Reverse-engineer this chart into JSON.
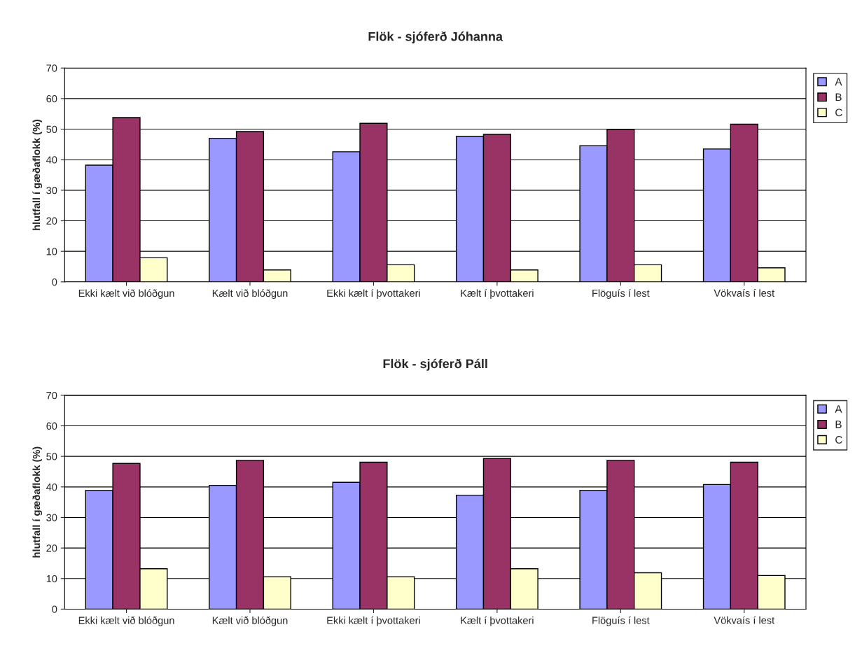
{
  "chart_data": [
    {
      "type": "bar",
      "title": "Flök - sjóferð Jóhanna",
      "ylabel": "hlutfall í gæðaflokk (%)",
      "categories": [
        "Ekki kælt við blóðgun",
        "Kælt við blóðgun",
        "Ekki kælt í þvottakeri",
        "Kælt í þvottakeri",
        "Flöguís í lest",
        "Vökvaís í lest"
      ],
      "series": [
        {
          "name": "A",
          "color": "#9999ff",
          "values": [
            38.2,
            47.0,
            42.6,
            47.6,
            44.6,
            43.5
          ]
        },
        {
          "name": "B",
          "color": "#993366",
          "values": [
            53.8,
            49.2,
            51.9,
            48.3,
            49.9,
            51.6
          ]
        },
        {
          "name": "C",
          "color": "#ffffcc",
          "values": [
            7.9,
            3.9,
            5.6,
            3.9,
            5.6,
            4.6
          ]
        }
      ],
      "ylim": [
        0,
        70
      ],
      "yticks": [
        0,
        10,
        20,
        30,
        40,
        50,
        60,
        70
      ],
      "grid": "y",
      "legend": "top right"
    },
    {
      "type": "bar",
      "title": "Flök - sjóferð Páll",
      "ylabel": "hlutfall í gæðaflokk (%)",
      "categories": [
        "Ekki kælt við blóðgun",
        "Kælt við blóðgun",
        "Ekki kælt í þvottakeri",
        "Kælt í þvottakeri",
        "Flöguís í lest",
        "Vökvaís í lest"
      ],
      "series": [
        {
          "name": "A",
          "color": "#9999ff",
          "values": [
            38.9,
            40.5,
            41.5,
            37.3,
            38.9,
            40.8
          ]
        },
        {
          "name": "B",
          "color": "#993366",
          "values": [
            47.7,
            48.7,
            48.1,
            49.3,
            48.7,
            48.1
          ]
        },
        {
          "name": "C",
          "color": "#ffffcc",
          "values": [
            13.2,
            10.6,
            10.6,
            13.2,
            11.9,
            11.0
          ]
        }
      ],
      "ylim": [
        0,
        70
      ],
      "yticks": [
        0,
        10,
        20,
        30,
        40,
        50,
        60,
        70
      ],
      "grid": "y",
      "legend": "top right"
    }
  ]
}
